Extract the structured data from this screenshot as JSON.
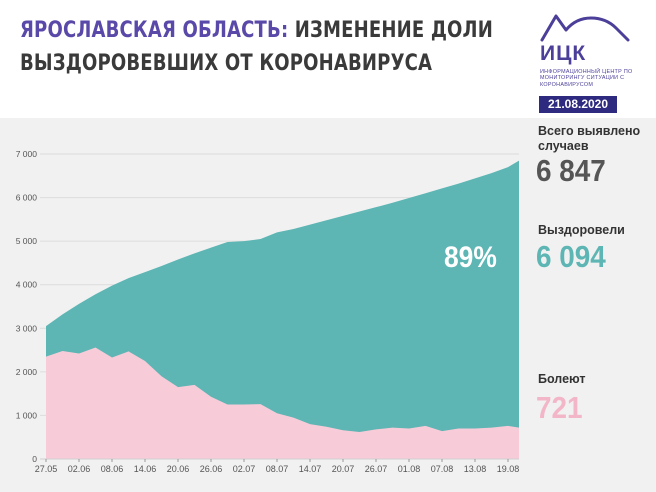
{
  "header": {
    "title_accent": "ЯРОСЛАВСКАЯ ОБЛАСТЬ:",
    "title_rest": " ИЗМЕНЕНИЕ ДОЛИ",
    "title_line2": "ВЫЗДОРОВЕВШИХ ОТ КОРОНАВИРУСА",
    "logo_text": "ИЦК",
    "logo_sub": "ИНФОРМАЦИОННЫЙ ЦЕНТР ПО МОНИТОРИНГУ СИТУАЦИИ С КОРОНАВИРУСОМ",
    "date": "21.08.2020"
  },
  "stats": {
    "total_label": "Всего выявлено случаев",
    "total_value": "6 847",
    "recovered_label": "Выздоровели",
    "recovered_value": "6 094",
    "sick_label": "Болеют",
    "sick_value": "721",
    "percent": "89%"
  },
  "colors": {
    "recovered": "#5db5b4",
    "sick": "#f8cbd8",
    "accent": "#5a49a8",
    "badge": "#2d2a7f",
    "total_text": "#555555",
    "sick_text": "#f2b6c8"
  },
  "chart_data": {
    "type": "area",
    "ylim": [
      0,
      7000
    ],
    "yticks": [
      "0",
      "1 000",
      "2 000",
      "3 000",
      "4 000",
      "5 000",
      "6 000",
      "7 000"
    ],
    "xticks": [
      "27.05",
      "02.06",
      "08.06",
      "14.06",
      "20.06",
      "26.06",
      "02.07",
      "08.07",
      "14.07",
      "20.07",
      "26.07",
      "01.08",
      "07.08",
      "13.08",
      "19.08"
    ],
    "x_tick_days": [
      0,
      6,
      12,
      18,
      24,
      30,
      36,
      42,
      48,
      54,
      60,
      66,
      72,
      78,
      84
    ],
    "days": [
      0,
      3,
      6,
      9,
      12,
      15,
      18,
      21,
      24,
      27,
      30,
      33,
      36,
      39,
      42,
      45,
      48,
      51,
      54,
      57,
      60,
      63,
      66,
      69,
      72,
      75,
      78,
      81,
      84,
      86
    ],
    "total": [
      3050,
      3320,
      3560,
      3780,
      3980,
      4150,
      4290,
      4430,
      4580,
      4720,
      4850,
      4980,
      5000,
      5050,
      5200,
      5280,
      5380,
      5480,
      5580,
      5680,
      5780,
      5880,
      5990,
      6100,
      6210,
      6320,
      6440,
      6560,
      6700,
      6847
    ],
    "sick": [
      2350,
      2480,
      2420,
      2560,
      2330,
      2470,
      2250,
      1900,
      1650,
      1700,
      1430,
      1250,
      1250,
      1260,
      1050,
      950,
      800,
      740,
      660,
      620,
      680,
      720,
      700,
      760,
      640,
      700,
      700,
      720,
      760,
      721
    ]
  }
}
